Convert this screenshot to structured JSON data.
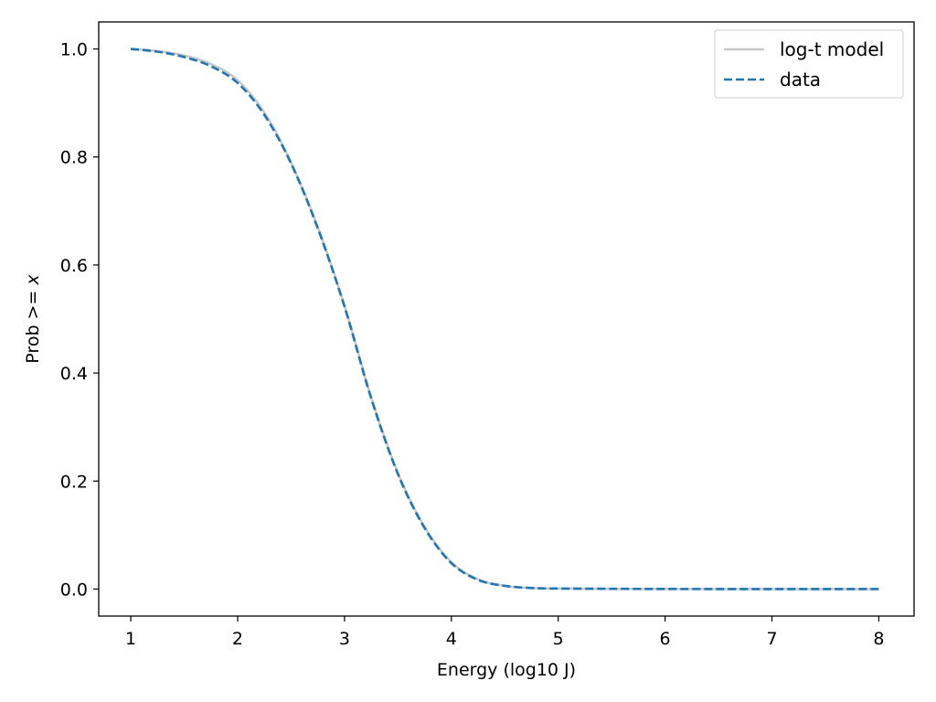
{
  "chart_data": {
    "type": "line",
    "title": "",
    "xlabel": "Energy (log10 J)",
    "ylabel_prefix": "Prob >= ",
    "ylabel_var": "x",
    "xlim": [
      0.7,
      8.33
    ],
    "ylim": [
      -0.05,
      1.05
    ],
    "xticks": [
      1,
      2,
      3,
      4,
      5,
      6,
      7,
      8
    ],
    "xtick_labels": [
      "1",
      "2",
      "3",
      "4",
      "5",
      "6",
      "7",
      "8"
    ],
    "yticks": [
      0.0,
      0.2,
      0.4,
      0.6,
      0.8,
      1.0
    ],
    "ytick_labels": [
      "0.0",
      "0.2",
      "0.4",
      "0.6",
      "0.8",
      "1.0"
    ],
    "grid": false,
    "legend_position": "top-right",
    "series": [
      {
        "name": "log-t model",
        "color": "#c8c8c8",
        "style": "solid",
        "x": [
          1.0,
          1.25,
          1.5,
          1.75,
          2.0,
          2.25,
          2.5,
          2.75,
          3.0,
          3.25,
          3.5,
          3.75,
          4.0,
          4.25,
          4.5,
          4.75,
          5.0,
          5.5,
          6.0,
          6.5,
          7.0,
          7.5,
          8.0
        ],
        "y": [
          1.0,
          0.996,
          0.988,
          0.972,
          0.942,
          0.882,
          0.79,
          0.67,
          0.525,
          0.355,
          0.215,
          0.115,
          0.05,
          0.018,
          0.006,
          0.002,
          0.001,
          0.0005,
          0.0002,
          0.0001,
          0.0,
          0.0,
          0.0
        ]
      },
      {
        "name": "data",
        "color": "#1f77b4",
        "style": "dashed",
        "x": [
          1.0,
          1.25,
          1.5,
          1.75,
          2.0,
          2.25,
          2.5,
          2.75,
          3.0,
          3.25,
          3.5,
          3.75,
          4.0,
          4.25,
          4.5,
          4.75,
          5.0,
          5.5,
          6.0,
          6.5,
          7.0,
          7.5,
          8.0
        ],
        "y": [
          1.0,
          0.995,
          0.985,
          0.968,
          0.937,
          0.878,
          0.788,
          0.668,
          0.523,
          0.353,
          0.213,
          0.113,
          0.048,
          0.017,
          0.006,
          0.002,
          0.001,
          0.0005,
          0.0002,
          0.0001,
          0.0,
          0.0,
          0.0
        ]
      }
    ]
  }
}
